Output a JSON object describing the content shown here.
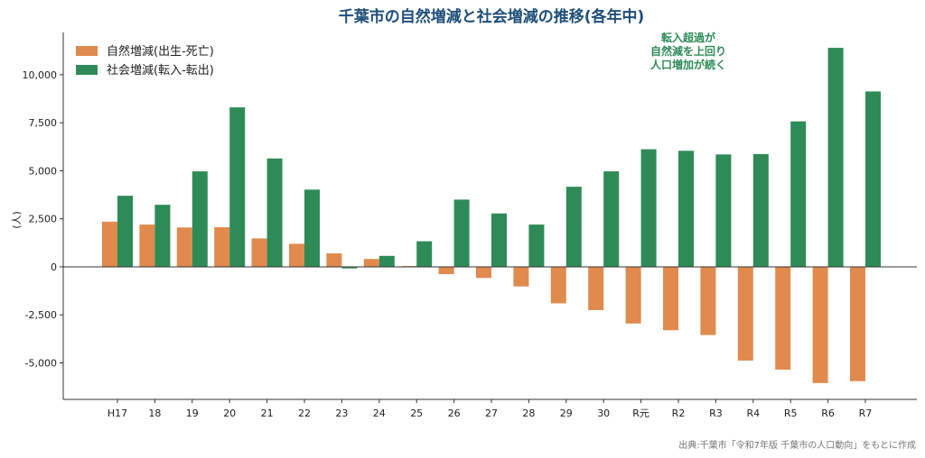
{
  "chart_data": {
    "type": "bar",
    "title": "千葉市の自然増減と社会増減の推移(各年中)",
    "xlabel": "",
    "ylabel": "(人)",
    "ylim": [
      -6900,
      12200
    ],
    "yticks": [
      -5000,
      -2500,
      0,
      2500,
      5000,
      7500,
      10000
    ],
    "ytick_labels": [
      "-5,000",
      "-2,500",
      "0",
      "2,500",
      "5,000",
      "7,500",
      "10,000"
    ],
    "categories": [
      "H17",
      "18",
      "19",
      "20",
      "21",
      "22",
      "23",
      "24",
      "25",
      "26",
      "27",
      "28",
      "29",
      "30",
      "R元",
      "R2",
      "R3",
      "R4",
      "R5",
      "R6",
      "R7"
    ],
    "series": [
      {
        "name": "自然増減(出生-死亡)",
        "color": "#E08A4D",
        "values": [
          2350,
          2200,
          2050,
          2060,
          1480,
          1200,
          700,
          410,
          40,
          -380,
          -580,
          -1020,
          -1900,
          -2250,
          -2950,
          -3300,
          -3550,
          -4880,
          -5350,
          -6050,
          -5950
        ]
      },
      {
        "name": "社会増減(転入-転出)",
        "color": "#2E8B57",
        "values": [
          3700,
          3230,
          4970,
          8300,
          5640,
          4020,
          -80,
          570,
          1330,
          3500,
          2780,
          2200,
          4170,
          4970,
          6120,
          6040,
          5850,
          5870,
          7570,
          11400,
          9130
        ]
      }
    ],
    "grid": false,
    "legend": "top-left",
    "annotation": {
      "lines": [
        "転入超過が",
        "自然減を上回り",
        "人口増加が続く"
      ],
      "color": "#2E8B57"
    }
  },
  "source": "出典:千葉市「令和7年版 千葉市の人口動向」をもとに作成",
  "colors": {
    "title": "#1F4E79",
    "axis": "#333333"
  }
}
